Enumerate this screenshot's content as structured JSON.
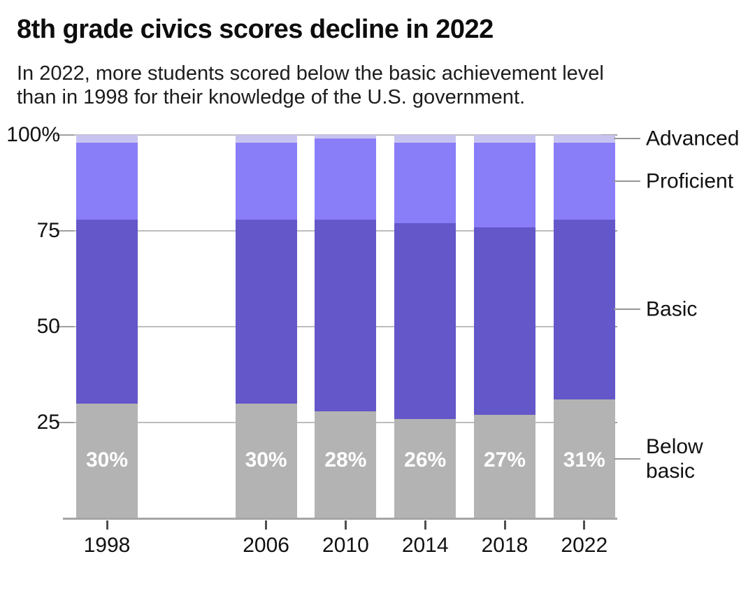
{
  "header": {
    "title": "8th grade civics scores decline in 2022",
    "subtitle_line1": "In 2022, more students scored below the basic achievement level",
    "subtitle_line2": "than in 1998 for their knowledge of the U.S. government."
  },
  "chart_data": {
    "type": "bar",
    "stacked": true,
    "unit": "percent",
    "title": "8th grade civics scores decline in 2022",
    "categories": [
      "1998",
      "2006",
      "2010",
      "2014",
      "2018",
      "2022"
    ],
    "series": [
      {
        "name": "Below basic",
        "color": "#b3b3b3",
        "values": [
          30,
          30,
          28,
          26,
          27,
          31
        ]
      },
      {
        "name": "Basic",
        "color": "#6457c9",
        "values": [
          48,
          48,
          50,
          51,
          49,
          47
        ]
      },
      {
        "name": "Proficient",
        "color": "#8a7df8",
        "values": [
          20,
          20,
          21,
          21,
          22,
          20
        ]
      },
      {
        "name": "Advanced",
        "color": "#c7c3f1",
        "values": [
          2,
          2,
          1,
          2,
          2,
          2
        ]
      }
    ],
    "bar_labels": [
      "30%",
      "30%",
      "28%",
      "26%",
      "27%",
      "31%"
    ],
    "y_axis": {
      "range": [
        0,
        100
      ],
      "tick_values": [
        100,
        75,
        50,
        25
      ],
      "tick_labels": [
        "100%",
        "75",
        "50",
        "25"
      ],
      "grid": true
    },
    "legend": {
      "position": "right",
      "labels": [
        "Advanced",
        "Proficient",
        "Basic",
        "Below basic"
      ]
    },
    "colors": {
      "gridline": "#bdbdbd",
      "baseline": "#a6a6a6",
      "bar_label_text": "#ffffff"
    }
  }
}
